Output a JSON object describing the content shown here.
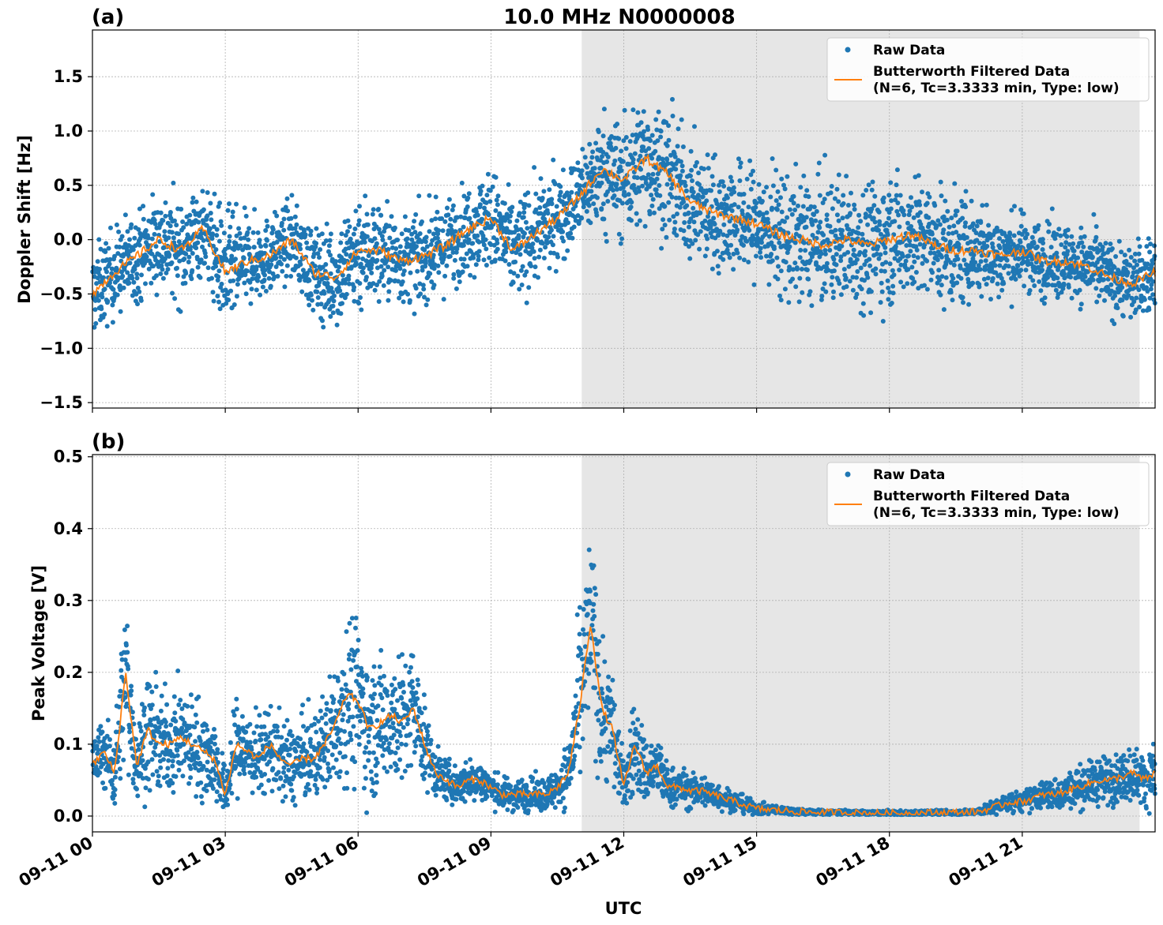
{
  "figure": {
    "title": "10.0 MHz N0000008",
    "xlabel": "UTC"
  },
  "colors": {
    "raw": "#1f77b4",
    "filtered": "#ff7f0e",
    "shade": "#e6e6e6",
    "grid": "#b0b0b0"
  },
  "legend": {
    "raw_label": "Raw Data",
    "filtered_label_line1": "Butterworth Filtered Data",
    "filtered_label_line2": "(N=6, Tc=3.3333 min, Type: low)",
    "placement": "upper right"
  },
  "chart_data": [
    {
      "panel": "(a)",
      "type": "scatter",
      "ylabel": "Doppler Shift [Hz]",
      "xlim_hours": [
        0,
        24
      ],
      "ylim": [
        -1.55,
        1.93
      ],
      "yticks": [
        -1.5,
        -1.0,
        -0.5,
        0.0,
        0.5,
        1.0,
        1.5
      ],
      "ytick_labels": [
        "−1.5",
        "−1.0",
        "−0.5",
        "0.0",
        "0.5",
        "1.0",
        "1.5"
      ],
      "shaded_region_hours": [
        11.05,
        23.65
      ],
      "filtered_x_hours": [
        0,
        0.5,
        1,
        1.5,
        2,
        2.5,
        3,
        3.5,
        4,
        4.5,
        5,
        5.5,
        6,
        6.5,
        7,
        7.5,
        8,
        8.5,
        9,
        9.5,
        10,
        10.5,
        11,
        11.5,
        12,
        12.5,
        13,
        13.5,
        14,
        14.5,
        15,
        15.5,
        16,
        16.5,
        17,
        17.5,
        18,
        18.5,
        19,
        19.5,
        20,
        20.5,
        21,
        21.5,
        22,
        22.5,
        23,
        23.5,
        24
      ],
      "filtered_y": [
        -0.5,
        -0.3,
        -0.15,
        0.0,
        -0.1,
        0.1,
        -0.3,
        -0.2,
        -0.15,
        0.0,
        -0.3,
        -0.35,
        -0.1,
        -0.1,
        -0.2,
        -0.15,
        -0.05,
        0.1,
        0.2,
        -0.1,
        0.05,
        0.2,
        0.4,
        0.65,
        0.55,
        0.75,
        0.6,
        0.35,
        0.25,
        0.2,
        0.15,
        0.05,
        0.0,
        -0.05,
        0.0,
        -0.05,
        0.0,
        0.05,
        -0.05,
        -0.1,
        -0.1,
        -0.15,
        -0.1,
        -0.2,
        -0.2,
        -0.25,
        -0.35,
        -0.4,
        -0.3
      ],
      "raw_spread": [
        0.35,
        0.35,
        0.35,
        0.4,
        0.4,
        0.35,
        0.5,
        0.35,
        0.3,
        0.3,
        0.35,
        0.4,
        0.5,
        0.4,
        0.35,
        0.35,
        0.35,
        0.35,
        0.4,
        0.4,
        0.4,
        0.35,
        0.35,
        0.45,
        0.5,
        0.5,
        0.5,
        0.45,
        0.45,
        0.45,
        0.45,
        0.5,
        0.5,
        0.5,
        0.5,
        0.5,
        0.5,
        0.5,
        0.45,
        0.45,
        0.4,
        0.35,
        0.3,
        0.3,
        0.3,
        0.3,
        0.3,
        0.3,
        0.3
      ]
    },
    {
      "panel": "(b)",
      "type": "scatter",
      "ylabel": "Peak Voltage [V]",
      "xlim_hours": [
        0,
        24
      ],
      "ylim": [
        -0.022,
        0.503
      ],
      "yticks": [
        0.0,
        0.1,
        0.2,
        0.3,
        0.4,
        0.5
      ],
      "ytick_labels": [
        "0.0",
        "0.1",
        "0.2",
        "0.3",
        "0.4",
        "0.5"
      ],
      "shaded_region_hours": [
        11.05,
        23.65
      ],
      "filtered_x_hours": [
        0,
        0.25,
        0.5,
        0.75,
        1,
        1.25,
        1.5,
        1.75,
        2,
        2.25,
        2.5,
        2.75,
        3,
        3.25,
        3.5,
        3.75,
        4,
        4.25,
        4.5,
        4.75,
        5,
        5.25,
        5.5,
        5.75,
        6,
        6.25,
        6.5,
        6.75,
        7,
        7.25,
        7.5,
        7.75,
        8,
        8.25,
        8.5,
        8.75,
        9,
        9.25,
        9.5,
        9.75,
        10,
        10.25,
        10.5,
        10.75,
        11,
        11.25,
        11.5,
        11.75,
        12,
        12.25,
        12.5,
        12.75,
        13,
        13.25,
        13.5,
        13.75,
        14,
        14.25,
        14.5,
        14.75,
        15,
        15.5,
        16,
        16.5,
        17,
        17.5,
        18,
        18.5,
        19,
        19.5,
        20,
        20.25,
        20.5,
        20.75,
        21,
        21.25,
        21.5,
        21.75,
        22,
        22.25,
        22.5,
        22.75,
        23,
        23.25,
        23.5,
        23.75,
        24
      ],
      "filtered_y": [
        0.07,
        0.09,
        0.06,
        0.2,
        0.07,
        0.12,
        0.1,
        0.1,
        0.11,
        0.1,
        0.09,
        0.08,
        0.03,
        0.1,
        0.09,
        0.08,
        0.1,
        0.08,
        0.07,
        0.08,
        0.08,
        0.1,
        0.13,
        0.17,
        0.16,
        0.12,
        0.13,
        0.14,
        0.13,
        0.15,
        0.1,
        0.06,
        0.05,
        0.04,
        0.05,
        0.05,
        0.04,
        0.03,
        0.03,
        0.03,
        0.03,
        0.03,
        0.04,
        0.06,
        0.15,
        0.27,
        0.15,
        0.12,
        0.04,
        0.1,
        0.06,
        0.07,
        0.04,
        0.04,
        0.035,
        0.035,
        0.03,
        0.025,
        0.02,
        0.015,
        0.01,
        0.008,
        0.006,
        0.005,
        0.005,
        0.004,
        0.004,
        0.004,
        0.005,
        0.005,
        0.006,
        0.01,
        0.015,
        0.02,
        0.02,
        0.025,
        0.03,
        0.03,
        0.035,
        0.04,
        0.045,
        0.05,
        0.05,
        0.055,
        0.06,
        0.05,
        0.06
      ],
      "raw_spread": [
        0.04,
        0.04,
        0.05,
        0.1,
        0.05,
        0.07,
        0.06,
        0.06,
        0.06,
        0.06,
        0.06,
        0.05,
        0.03,
        0.06,
        0.05,
        0.05,
        0.05,
        0.05,
        0.05,
        0.05,
        0.05,
        0.06,
        0.08,
        0.1,
        0.1,
        0.08,
        0.08,
        0.08,
        0.08,
        0.08,
        0.05,
        0.03,
        0.025,
        0.025,
        0.025,
        0.025,
        0.02,
        0.02,
        0.02,
        0.02,
        0.02,
        0.02,
        0.025,
        0.04,
        0.1,
        0.12,
        0.09,
        0.07,
        0.03,
        0.06,
        0.04,
        0.04,
        0.025,
        0.025,
        0.02,
        0.02,
        0.018,
        0.015,
        0.012,
        0.01,
        0.007,
        0.005,
        0.004,
        0.003,
        0.003,
        0.003,
        0.003,
        0.003,
        0.003,
        0.003,
        0.004,
        0.007,
        0.01,
        0.012,
        0.012,
        0.015,
        0.018,
        0.02,
        0.02,
        0.025,
        0.025,
        0.03,
        0.03,
        0.03,
        0.035,
        0.03,
        0.035
      ]
    }
  ],
  "xaxis": {
    "tick_hours": [
      0,
      3,
      6,
      9,
      12,
      15,
      18,
      21
    ],
    "tick_labels": [
      "09-11 00",
      "09-11 03",
      "09-11 06",
      "09-11 09",
      "09-11 12",
      "09-11 15",
      "09-11 18",
      "09-11 21"
    ]
  }
}
